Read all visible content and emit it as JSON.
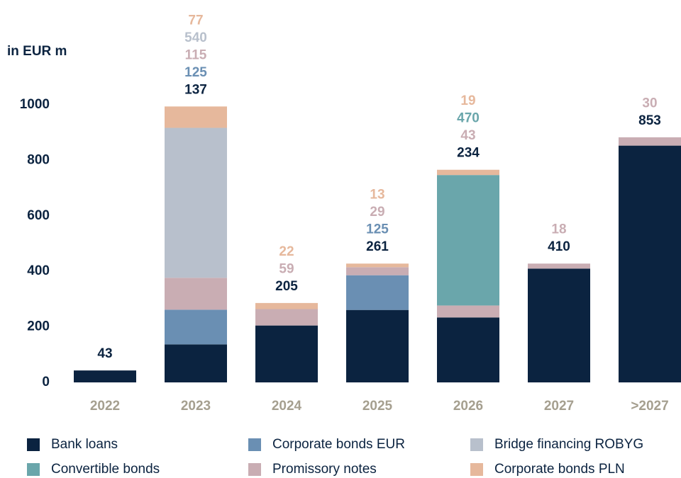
{
  "chart_data": {
    "type": "stacked_bar",
    "y_axis_label": "in EUR m",
    "categories": [
      "2022",
      "2023",
      "2024",
      "2025",
      "2026",
      "2027",
      ">2027"
    ],
    "series": [
      {
        "name": "Bank loans",
        "color": "#0b2340",
        "values": [
          43,
          137,
          205,
          261,
          234,
          410,
          853
        ]
      },
      {
        "name": "Corporate bonds EUR",
        "color": "#6a8fb3",
        "values": [
          null,
          125,
          null,
          125,
          null,
          null,
          null
        ]
      },
      {
        "name": "Promissory notes",
        "color": "#c9adb3",
        "values": [
          null,
          115,
          59,
          29,
          43,
          18,
          30
        ]
      },
      {
        "name": "Bridge financing ROBYG",
        "color": "#b8c0cc",
        "values": [
          null,
          540,
          null,
          null,
          null,
          null,
          null
        ]
      },
      {
        "name": "Convertible bonds",
        "color": "#6aa6ab",
        "values": [
          null,
          null,
          null,
          null,
          470,
          null,
          null
        ]
      },
      {
        "name": "Corporate bonds PLN",
        "color": "#e6b89c",
        "values": [
          null,
          77,
          22,
          13,
          19,
          null,
          null
        ]
      }
    ],
    "ylim": [
      0,
      1000
    ],
    "yticks": [
      0,
      200,
      400,
      600,
      800,
      1000
    ],
    "grid": false
  }
}
